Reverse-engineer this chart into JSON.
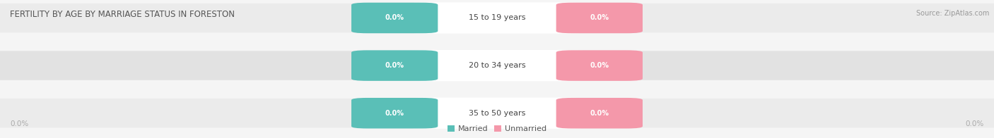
{
  "title": "FERTILITY BY AGE BY MARRIAGE STATUS IN FORESTON",
  "source": "Source: ZipAtlas.com",
  "categories": [
    "15 to 19 years",
    "20 to 34 years",
    "35 to 50 years"
  ],
  "married_values": [
    0.0,
    0.0,
    0.0
  ],
  "unmarried_values": [
    0.0,
    0.0,
    0.0
  ],
  "married_color": "#5abfb7",
  "unmarried_color": "#f498aa",
  "background_color": "#f5f5f5",
  "row_colors": [
    "#ebebeb",
    "#e2e2e2",
    "#ebebeb"
  ],
  "title_color": "#555555",
  "source_color": "#999999",
  "category_text_color": "#444444",
  "badge_text_color": "#ffffff",
  "axis_text_color": "#aaaaaa",
  "legend_text_color": "#555555",
  "title_fontsize": 8.5,
  "source_fontsize": 7.0,
  "cat_fontsize": 8.0,
  "badge_fontsize": 7.0,
  "legend_fontsize": 8.0,
  "axis_fontsize": 7.5
}
